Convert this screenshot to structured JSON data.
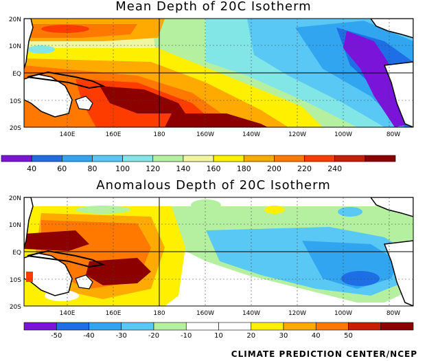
{
  "panels": [
    {
      "title": "Mean Depth of 20C Isotherm",
      "lat_labels": [
        "20N",
        "10N",
        "EQ",
        "10S",
        "20S"
      ],
      "lon_labels": [
        "140E",
        "160E",
        "180",
        "160W",
        "140W",
        "120W",
        "100W",
        "80W"
      ],
      "colorbar": {
        "colors": [
          "#7b14d9",
          "#1e6ee6",
          "#32a5f0",
          "#5ac8f5",
          "#82e6e6",
          "#b4f0a0",
          "#f0f5a0",
          "#fff000",
          "#ffaa00",
          "#ff7800",
          "#ff3c00",
          "#c81e00",
          "#8c0000"
        ],
        "labels": [
          "40",
          "60",
          "80",
          "100",
          "120",
          "140",
          "160",
          "180",
          "200",
          "220",
          "240"
        ]
      }
    },
    {
      "title": "Anomalous Depth of 20C Isotherm",
      "lat_labels": [
        "20N",
        "10N",
        "EQ",
        "10S",
        "20S"
      ],
      "lon_labels": [
        "140E",
        "160E",
        "180",
        "160W",
        "140W",
        "120W",
        "100W",
        "80W"
      ],
      "colorbar": {
        "colors": [
          "#7b14d9",
          "#1e6ee6",
          "#32a5f0",
          "#5ac8f5",
          "#b4f0a0",
          "#ffffff",
          "#ffffff",
          "#fff000",
          "#ffaa00",
          "#ff7800",
          "#c81e00",
          "#8c0000"
        ],
        "labels": [
          "-50",
          "-40",
          "-30",
          "-20",
          "-10",
          "10",
          "20",
          "30",
          "40",
          "50"
        ]
      }
    }
  ],
  "footer": "CLIMATE PREDICTION CENTER/NCEP"
}
